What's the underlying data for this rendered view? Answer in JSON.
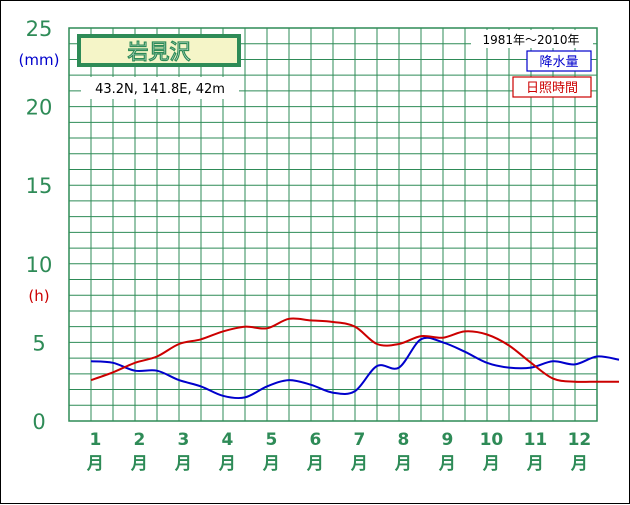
{
  "chart_data": {
    "type": "line",
    "title": "岩見沢",
    "subtitle": "43.2N,  141.8E,  42m",
    "period": "1981年〜2010年",
    "yunit_precip": "(mm)",
    "yunit_sun": "(h)",
    "ylim": [
      0,
      25
    ],
    "yticks": [
      "0",
      "5",
      "10",
      "15",
      "20",
      "25"
    ],
    "month_numbers": [
      "1",
      "2",
      "3",
      "4",
      "5",
      "6",
      "7",
      "8",
      "9",
      "10",
      "11",
      "12"
    ],
    "month_suffix": "月",
    "grid": true,
    "legend_position": "top-right",
    "colors": {
      "grid": "#2e8b57",
      "precip": "#0000cc",
      "sun": "#cc0000",
      "title_bg": "#f5f5c8"
    },
    "series": [
      {
        "name": "降水量",
        "x": [
          0.5,
          1,
          1.5,
          2,
          2.5,
          3,
          3.5,
          4,
          4.5,
          5,
          5.5,
          6,
          6.5,
          7,
          7.5,
          8,
          8.5,
          9,
          9.5,
          10,
          10.5,
          11,
          11.5,
          12,
          12.5
        ],
        "values": [
          3.8,
          3.7,
          3.2,
          3.2,
          2.6,
          2.2,
          1.6,
          1.5,
          2.2,
          2.6,
          2.3,
          1.8,
          1.9,
          3.5,
          3.4,
          5.2,
          5.0,
          4.4,
          3.7,
          3.4,
          3.4,
          3.8,
          3.6,
          4.1,
          3.9
        ]
      },
      {
        "name": "日照時間",
        "x": [
          0.5,
          1,
          1.5,
          2,
          2.5,
          3,
          3.5,
          4,
          4.5,
          5,
          5.5,
          6,
          6.5,
          7,
          7.5,
          8,
          8.5,
          9,
          9.5,
          10,
          10.5,
          11,
          11.5,
          12,
          12.5
        ],
        "values": [
          2.6,
          3.1,
          3.7,
          4.1,
          4.9,
          5.2,
          5.7,
          6.0,
          5.9,
          6.5,
          6.4,
          6.3,
          6.0,
          4.9,
          4.9,
          5.4,
          5.3,
          5.7,
          5.5,
          4.8,
          3.7,
          2.7,
          2.5,
          2.5,
          2.5
        ]
      }
    ]
  }
}
